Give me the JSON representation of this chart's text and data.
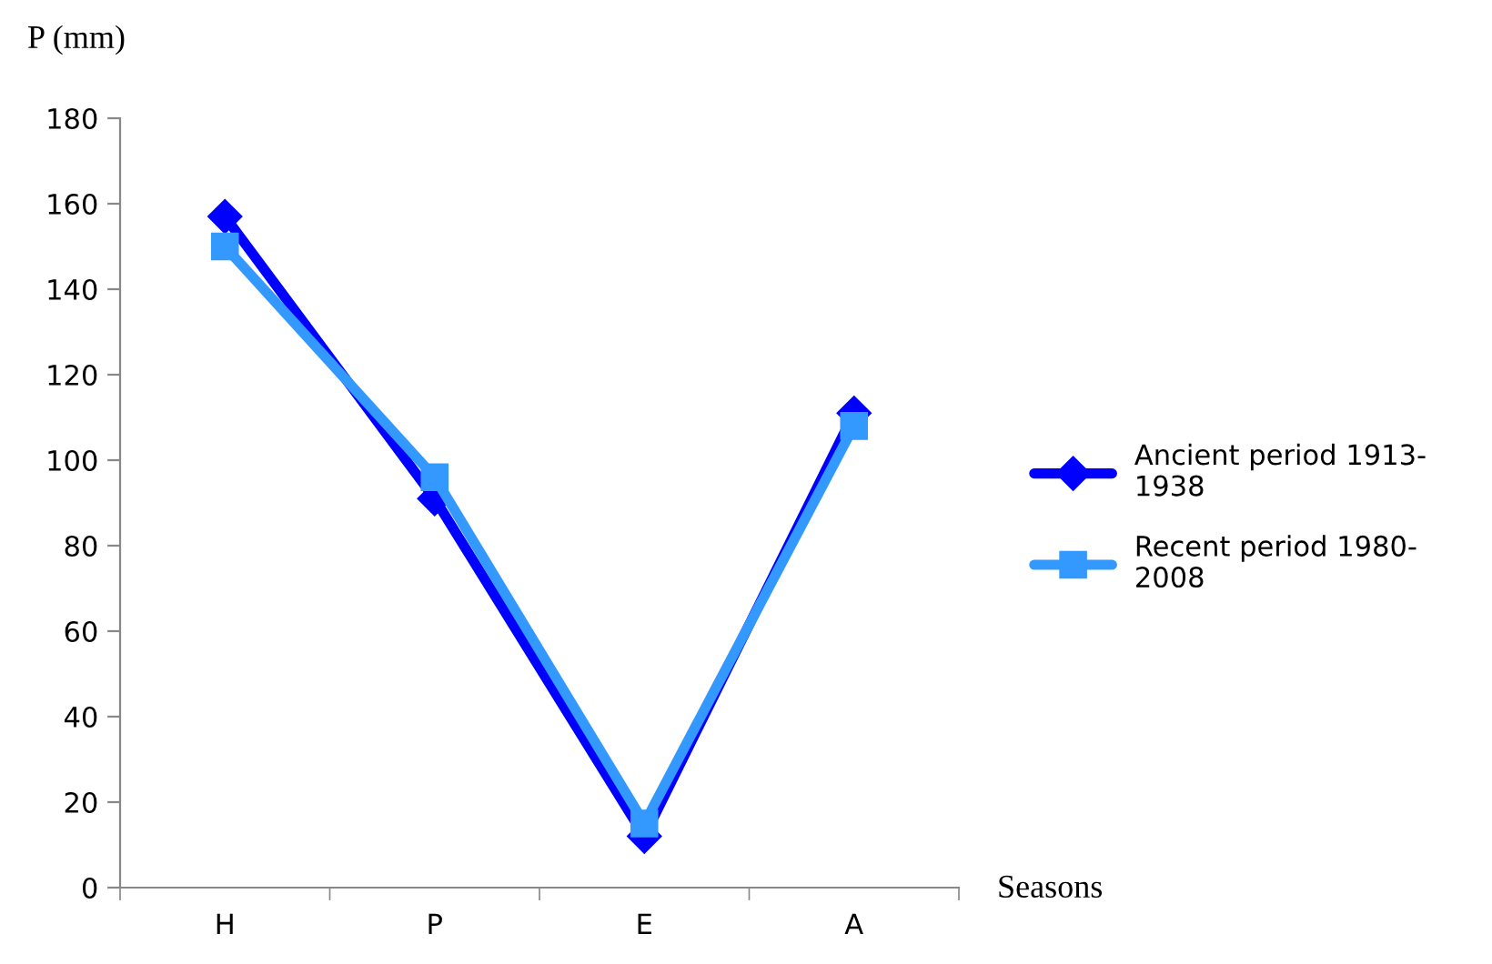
{
  "chart_data": {
    "type": "line",
    "ylabel": "P (mm)",
    "xlabel": "Seasons",
    "categories": [
      "H",
      "P",
      "E",
      "A"
    ],
    "series": [
      {
        "name": "Ancient period 1913-1938",
        "color": "#0000ff",
        "marker": "diamond",
        "values": [
          157,
          91,
          12,
          111
        ]
      },
      {
        "name": "Recent period 1980-2008",
        "color": "#3399ff",
        "marker": "square",
        "values": [
          150,
          96,
          15,
          108
        ]
      }
    ],
    "ylim": [
      0,
      180
    ],
    "yticks": [
      0,
      20,
      40,
      60,
      80,
      100,
      120,
      140,
      160,
      180
    ],
    "grid": false,
    "legend": "right"
  }
}
